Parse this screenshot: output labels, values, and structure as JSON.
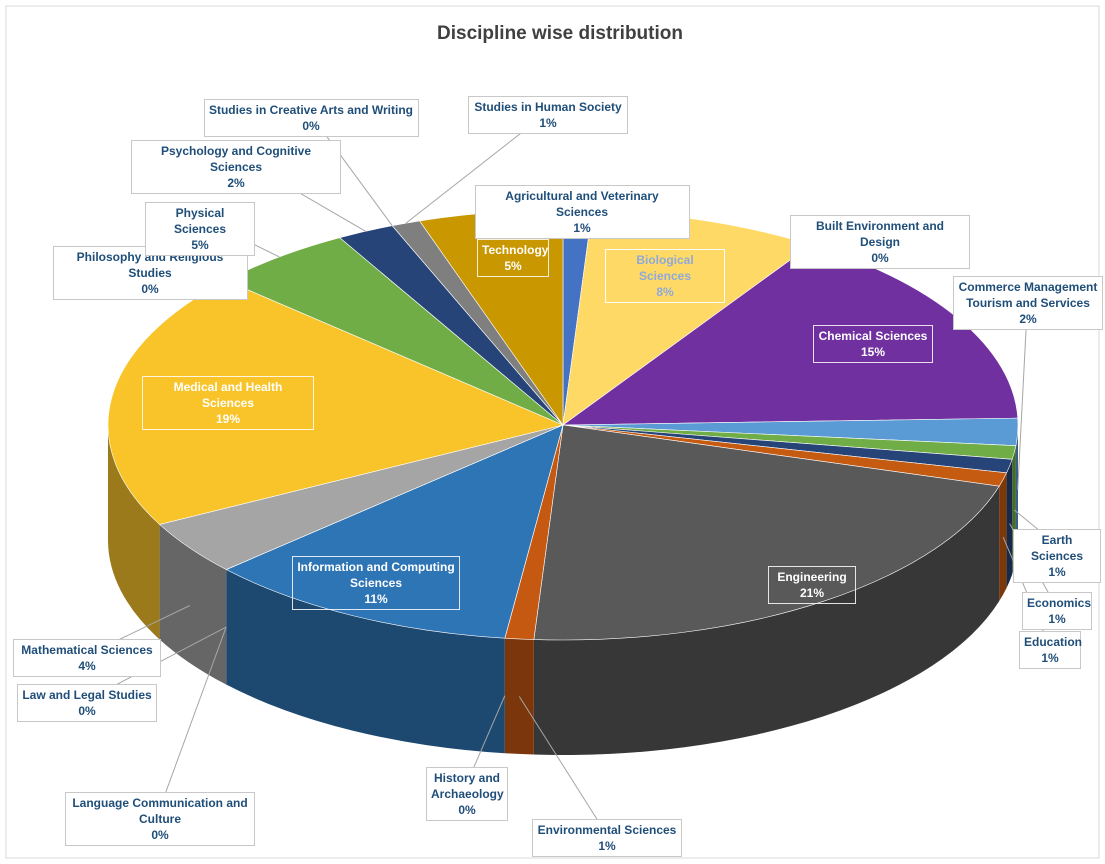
{
  "chart_data": {
    "type": "pie3d",
    "title": "Discipline wise distribution",
    "categories": [
      "Agricultural and Veterinary Sciences",
      "Biological Sciences",
      "Built Environment and Design",
      "Chemical Sciences",
      "Commerce Management Tourism and Services",
      "Earth Sciences",
      "Economics",
      "Education",
      "Engineering",
      "Environmental Sciences",
      "History and Archaeology",
      "Information and Computing Sciences",
      "Language Communication and Culture",
      "Law and Legal Studies",
      "Mathematical Sciences",
      "Medical and Health Sciences",
      "Philosophy and Religious Studies",
      "Physical Sciences",
      "Psychology and Cognitive Sciences",
      "Studies in Creative Arts and Writing",
      "Studies in Human Society",
      "Technology"
    ],
    "values": [
      1,
      8,
      0,
      15,
      2,
      1,
      1,
      1,
      21,
      1,
      0,
      11,
      0,
      0,
      4,
      19,
      0,
      5,
      2,
      0,
      1,
      5
    ],
    "value_labels": [
      "1%",
      "8%",
      "0%",
      "15%",
      "2%",
      "1%",
      "1%",
      "1%",
      "21%",
      "1%",
      "0%",
      "11%",
      "0%",
      "0%",
      "4%",
      "19%",
      "0%",
      "5%",
      "2%",
      "0%",
      "1%",
      "5%"
    ],
    "colors": [
      "#4472c4",
      "#ffd966",
      "#a5a5a5",
      "#7030a0",
      "#5b9bd5",
      "#70ad47",
      "#264478",
      "#c55a11",
      "#595959",
      "#c65911",
      "#375623",
      "#2e75b6",
      "#ed7d31",
      "#4472c4",
      "#a5a5a5",
      "#f8c42a",
      "#5b9bd5",
      "#70ad47",
      "#264478",
      "#ed7d31",
      "#7f7f7f",
      "#c99700"
    ]
  }
}
